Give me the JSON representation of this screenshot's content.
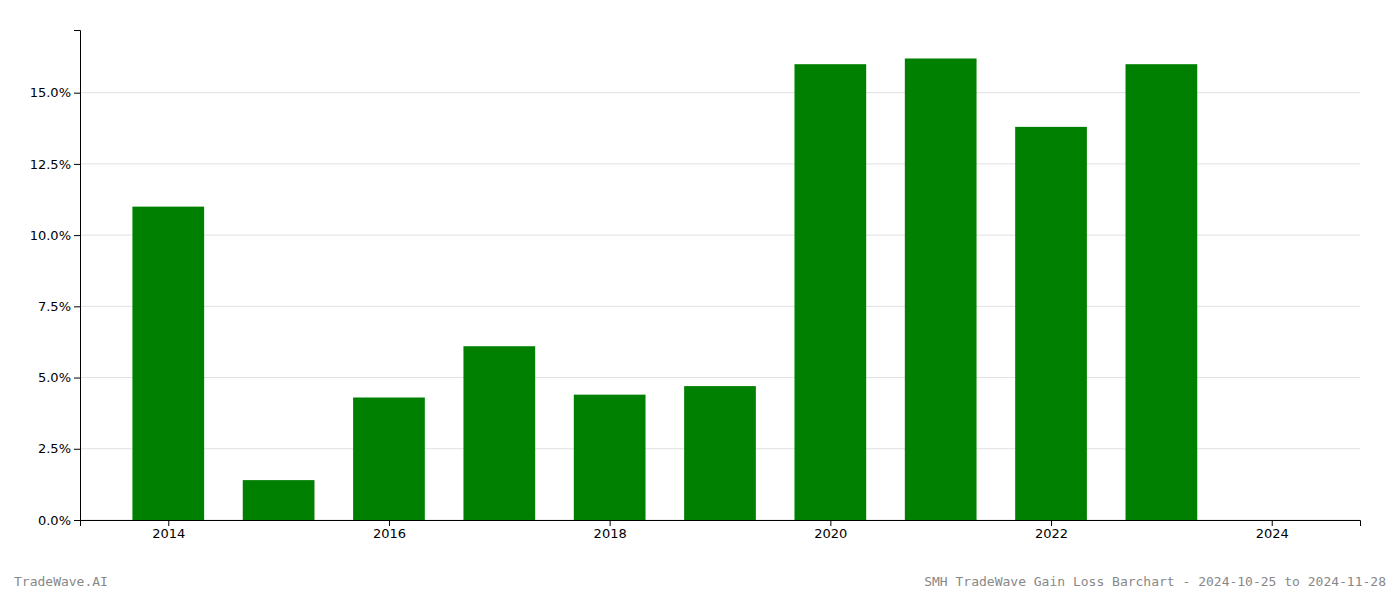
{
  "chart_data": {
    "type": "bar",
    "x": [
      2014,
      2015,
      2016,
      2017,
      2018,
      2019,
      2020,
      2021,
      2022,
      2023,
      2024
    ],
    "values": [
      0.11,
      0.014,
      0.043,
      0.061,
      0.044,
      0.047,
      0.16,
      0.162,
      0.138,
      0.16,
      null
    ],
    "color": "#008000",
    "xlim": [
      2013.2,
      2024.8
    ],
    "ylim": [
      0,
      0.172
    ],
    "xticks": [
      2014,
      2016,
      2018,
      2020,
      2022,
      2024
    ],
    "yticks": [
      {
        "value": 0.0,
        "label": "0.0%"
      },
      {
        "value": 0.025,
        "label": "2.5%"
      },
      {
        "value": 0.05,
        "label": "5.0%"
      },
      {
        "value": 0.075,
        "label": "7.5%"
      },
      {
        "value": 0.1,
        "label": "10.0%"
      },
      {
        "value": 0.125,
        "label": "12.5%"
      },
      {
        "value": 0.15,
        "label": "15.0%"
      }
    ],
    "grid": true,
    "annotations": [
      "TradeWave.AI",
      "SMH TradeWave Gain Loss Barchart - 2024-10-25 to 2024-11-28"
    ]
  }
}
